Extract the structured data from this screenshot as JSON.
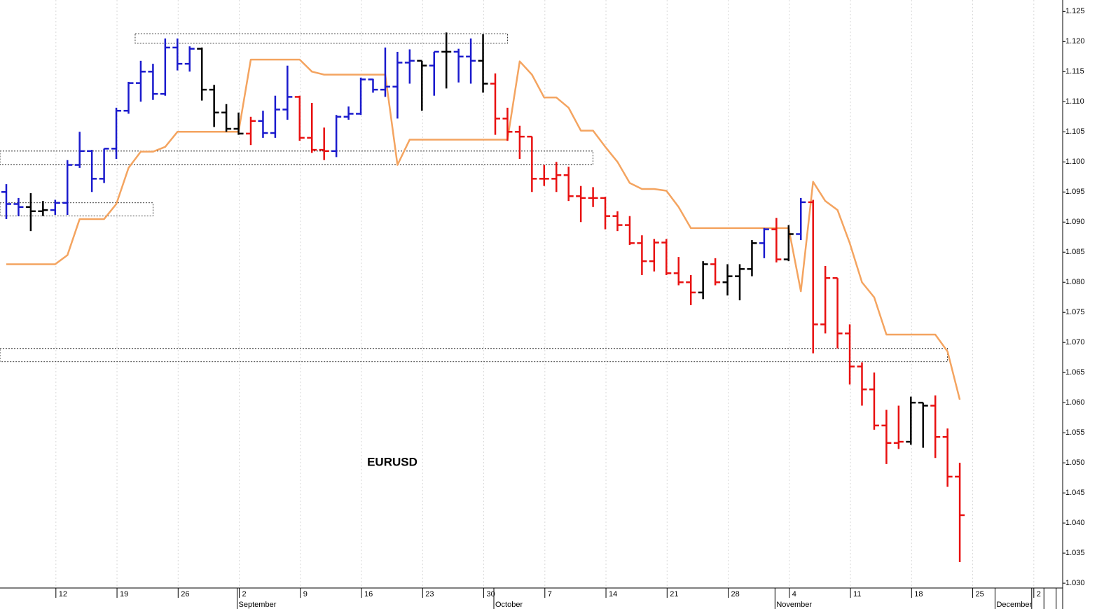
{
  "chart_data": {
    "type": "ohlc",
    "annotation": "EURUSD",
    "categories": [
      null,
      null,
      null,
      null,
      "12",
      null,
      null,
      null,
      null,
      "19",
      null,
      null,
      null,
      null,
      "26",
      null,
      null,
      null,
      null,
      "2",
      null,
      null,
      null,
      null,
      "9",
      null,
      null,
      null,
      null,
      "16",
      null,
      null,
      null,
      null,
      "23",
      null,
      null,
      null,
      null,
      "30",
      null,
      null,
      null,
      null,
      "7",
      null,
      null,
      null,
      null,
      "14",
      null,
      null,
      null,
      null,
      "21",
      null,
      null,
      null,
      null,
      "28",
      null,
      null,
      null,
      null,
      "4",
      null,
      null,
      null,
      null,
      "11",
      null,
      null,
      null,
      null,
      "18",
      null,
      null,
      null,
      null,
      "25",
      null,
      null,
      null,
      null,
      "2",
      null,
      null
    ],
    "month_labels": [
      null,
      null,
      null,
      null,
      null,
      null,
      null,
      null,
      null,
      null,
      null,
      null,
      null,
      null,
      null,
      null,
      null,
      null,
      null,
      "September",
      null,
      null,
      null,
      null,
      null,
      null,
      null,
      null,
      null,
      null,
      null,
      null,
      null,
      null,
      null,
      null,
      null,
      null,
      null,
      null,
      "October",
      null,
      null,
      null,
      null,
      null,
      null,
      null,
      null,
      null,
      null,
      null,
      null,
      null,
      null,
      null,
      null,
      null,
      null,
      null,
      null,
      null,
      null,
      "November",
      null,
      null,
      null,
      null,
      null,
      null,
      null,
      null,
      null,
      null,
      null,
      null,
      null,
      null,
      null,
      null,
      null,
      "December",
      null,
      null
    ],
    "open": [
      1.095,
      1.093,
      1.0925,
      1.0918,
      1.092,
      1.0932,
      1.0995,
      1.1018,
      1.0972,
      1.1022,
      1.1085,
      1.1131,
      1.115,
      1.1113,
      1.119,
      1.1163,
      1.1188,
      1.112,
      1.1082,
      1.1055,
      1.1047,
      1.1068,
      1.1048,
      1.1087,
      1.1108,
      1.104,
      1.102,
      1.1018,
      1.1075,
      1.108,
      1.1137,
      1.112,
      1.1125,
      1.1165,
      1.1168,
      1.116,
      1.1183,
      1.1183,
      1.1175,
      1.1168,
      1.113,
      1.1072,
      1.105,
      1.1042,
      1.0972,
      1.0972,
      1.0978,
      1.0943,
      1.094,
      1.094,
      1.091,
      1.0895,
      1.0865,
      1.0835,
      1.0866,
      1.0815,
      1.08,
      1.0783,
      1.083,
      1.08,
      1.081,
      1.0822,
      1.0865,
      1.0888,
      1.0838,
      1.088,
      1.0933,
      1.073,
      1.0807,
      1.0715,
      1.066,
      1.0622,
      1.0562,
      1.0533,
      1.0535,
      1.06,
      1.0595,
      1.0543,
      1.0477,
      null,
      null,
      null,
      null,
      null,
      null,
      null,
      null
    ],
    "high": [
      1.0963,
      1.094,
      1.0948,
      1.0935,
      1.0937,
      1.1003,
      1.105,
      1.102,
      1.1022,
      1.109,
      1.1133,
      1.1168,
      1.1163,
      1.1205,
      1.1205,
      1.1192,
      1.119,
      1.1128,
      1.1096,
      1.1082,
      1.1075,
      1.1085,
      1.111,
      1.116,
      1.111,
      1.1098,
      1.1057,
      1.1078,
      1.1092,
      1.114,
      1.1138,
      1.119,
      1.1183,
      1.1187,
      1.1168,
      1.1183,
      1.1215,
      1.1188,
      1.1205,
      1.1212,
      1.1147,
      1.109,
      1.106,
      1.1042,
      1.0995,
      1.1,
      1.0992,
      1.096,
      1.0958,
      1.0942,
      1.0918,
      1.091,
      1.0878,
      1.0872,
      1.0872,
      1.0842,
      1.0812,
      1.0835,
      1.084,
      1.083,
      1.083,
      1.087,
      1.089,
      1.0907,
      1.0895,
      1.094,
      1.0937,
      1.0827,
      1.0807,
      1.073,
      1.0667,
      1.065,
      1.0588,
      1.0595,
      1.061,
      1.06,
      1.0612,
      1.0557,
      1.05,
      null,
      null,
      null,
      null,
      null,
      null,
      null,
      null
    ],
    "low": [
      1.0905,
      1.091,
      1.0885,
      1.091,
      1.0912,
      1.0912,
      1.099,
      1.095,
      1.0965,
      1.1005,
      1.108,
      1.11,
      1.1103,
      1.111,
      1.1152,
      1.115,
      1.1102,
      1.1058,
      1.105,
      1.1045,
      1.1028,
      1.104,
      1.104,
      1.107,
      1.1035,
      1.1015,
      1.1003,
      1.1008,
      1.107,
      1.1078,
      1.1115,
      1.1108,
      1.1072,
      1.113,
      1.1085,
      1.111,
      1.1122,
      1.1132,
      1.113,
      1.1115,
      1.1045,
      1.1035,
      1.1005,
      1.095,
      1.096,
      1.095,
      1.0935,
      1.09,
      1.0925,
      1.0888,
      1.0885,
      1.0862,
      1.0812,
      1.0818,
      1.0812,
      1.0795,
      1.0762,
      1.0772,
      1.0795,
      1.0778,
      1.077,
      1.081,
      1.084,
      1.0833,
      1.0835,
      1.087,
      1.0682,
      1.0715,
      1.069,
      1.063,
      1.0595,
      1.0555,
      1.0498,
      1.0523,
      1.053,
      1.0525,
      1.0508,
      1.046,
      1.0335,
      null,
      null,
      null,
      null,
      null,
      null,
      null,
      null
    ],
    "close": [
      1.093,
      1.0925,
      1.0918,
      1.092,
      1.0932,
      1.0995,
      1.1018,
      1.0972,
      1.1022,
      1.1085,
      1.1131,
      1.115,
      1.1113,
      1.119,
      1.1163,
      1.1188,
      1.112,
      1.1082,
      1.1055,
      1.1047,
      1.1068,
      1.1048,
      1.1087,
      1.1108,
      1.104,
      1.102,
      1.1018,
      1.1075,
      1.108,
      1.1137,
      1.112,
      1.1125,
      1.1165,
      1.1168,
      1.116,
      1.1183,
      1.1183,
      1.1175,
      1.1168,
      1.113,
      1.1072,
      1.105,
      1.1042,
      1.0972,
      1.0972,
      1.0978,
      1.0943,
      1.094,
      1.094,
      1.091,
      1.0895,
      1.0865,
      1.0835,
      1.0866,
      1.0815,
      1.08,
      1.0783,
      1.083,
      1.08,
      1.081,
      1.0822,
      1.0865,
      1.0888,
      1.0838,
      1.088,
      1.0933,
      1.073,
      1.0807,
      1.0715,
      1.066,
      1.0622,
      1.0562,
      1.0533,
      1.0535,
      1.06,
      1.0595,
      1.0543,
      1.0477,
      1.0413,
      null,
      null,
      null,
      null,
      null,
      null,
      null,
      null
    ],
    "bar_colors": [
      "#1a1acd",
      "#1a1acd",
      "#000000",
      "#000000",
      "#1a1acd",
      "#1a1acd",
      "#1a1acd",
      "#1a1acd",
      "#1a1acd",
      "#1a1acd",
      "#1a1acd",
      "#1a1acd",
      "#1a1acd",
      "#1a1acd",
      "#1a1acd",
      "#1a1acd",
      "#000000",
      "#000000",
      "#000000",
      "#000000",
      "#e81010",
      "#1a1acd",
      "#1a1acd",
      "#1a1acd",
      "#e81010",
      "#e81010",
      "#e81010",
      "#1a1acd",
      "#1a1acd",
      "#1a1acd",
      "#1a1acd",
      "#1a1acd",
      "#1a1acd",
      "#1a1acd",
      "#000000",
      "#1a1acd",
      "#000000",
      "#1a1acd",
      "#1a1acd",
      "#000000",
      "#e81010",
      "#e81010",
      "#e81010",
      "#e81010",
      "#e81010",
      "#e81010",
      "#e81010",
      "#e81010",
      "#e81010",
      "#e81010",
      "#e81010",
      "#e81010",
      "#e81010",
      "#e81010",
      "#e81010",
      "#e81010",
      "#e81010",
      "#000000",
      "#e81010",
      "#000000",
      "#000000",
      "#000000",
      "#1a1acd",
      "#e81010",
      "#000000",
      "#1a1acd",
      "#e81010",
      "#e81010",
      "#e81010",
      "#e81010",
      "#e81010",
      "#e81010",
      "#e81010",
      "#e81010",
      "#000000",
      "#000000",
      "#e81010",
      "#e81010",
      "#e81010",
      null,
      null,
      null,
      null,
      null,
      null,
      null,
      null
    ],
    "line": {
      "color": "#f4a460",
      "values": [
        1.083,
        1.083,
        1.083,
        1.083,
        1.083,
        1.0845,
        1.0905,
        1.0905,
        1.0905,
        1.093,
        1.099,
        1.1017,
        1.1017,
        1.1025,
        1.105,
        1.105,
        1.105,
        1.105,
        1.105,
        1.105,
        1.117,
        1.117,
        1.117,
        1.117,
        1.117,
        1.115,
        1.1145,
        1.1145,
        1.1145,
        1.1145,
        1.1145,
        1.1145,
        1.0995,
        1.1037,
        1.1037,
        1.1037,
        1.1037,
        1.1037,
        1.1037,
        1.1037,
        1.1037,
        1.1037,
        1.1167,
        1.1145,
        1.1107,
        1.1107,
        1.109,
        1.1052,
        1.1052,
        1.1025,
        1.1,
        1.0965,
        1.0955,
        1.0955,
        1.0952,
        1.0925,
        1.089,
        1.089,
        1.089,
        1.089,
        1.089,
        1.089,
        1.089,
        1.089,
        1.089,
        1.0785,
        1.0967,
        1.0935,
        1.092,
        1.0865,
        1.08,
        1.0775,
        1.0713,
        1.0713,
        1.0713,
        1.0713,
        1.0713,
        1.0685,
        1.0605,
        null,
        null,
        null,
        null,
        null,
        null,
        null,
        null
      ]
    },
    "zones": [
      {
        "high": 1.1213,
        "low": 1.1197,
        "start": 11,
        "end": 41
      },
      {
        "high": 1.1018,
        "low": 1.0995,
        "end": 48
      },
      {
        "high": 1.0932,
        "low": 1.091,
        "end": 12
      },
      {
        "high": 1.069,
        "low": 1.0668,
        "end": 77
      }
    ],
    "ylim": [
      1.0292,
      1.1269
    ],
    "yticks": [
      {
        "value": 1.03,
        "label": "1.030"
      },
      {
        "value": 1.035,
        "label": "1.035"
      },
      {
        "value": 1.04,
        "label": "1.040"
      },
      {
        "value": 1.045,
        "label": "1.045"
      },
      {
        "value": 1.05,
        "label": "1.050"
      },
      {
        "value": 1.055,
        "label": "1.055"
      },
      {
        "value": 1.06,
        "label": "1.060"
      },
      {
        "value": 1.065,
        "label": "1.065"
      },
      {
        "value": 1.07,
        "label": "1.070"
      },
      {
        "value": 1.075,
        "label": "1.075"
      },
      {
        "value": 1.08,
        "label": "1.080"
      },
      {
        "value": 1.085,
        "label": "1.085"
      },
      {
        "value": 1.09,
        "label": "1.090"
      },
      {
        "value": 1.095,
        "label": "1.095"
      },
      {
        "value": 1.1,
        "label": "1.100"
      },
      {
        "value": 1.105,
        "label": "1.105"
      },
      {
        "value": 1.11,
        "label": "1.110"
      },
      {
        "value": 1.115,
        "label": "1.115"
      },
      {
        "value": 1.12,
        "label": "1.120"
      },
      {
        "value": 1.125,
        "label": "1.125"
      }
    ],
    "grid": true
  }
}
